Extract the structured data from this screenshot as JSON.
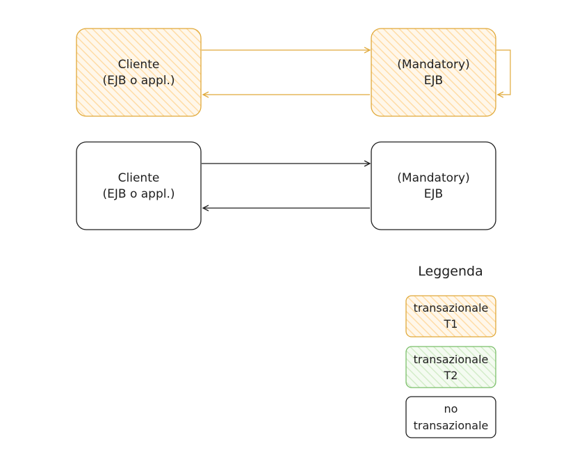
{
  "colors": {
    "t1_stroke": "#e0a93a",
    "t1_fill": "#ffeccc",
    "t2_stroke": "#7bbf6a",
    "t2_fill": "#e3f4dc",
    "none_stroke": "#1e1e1e",
    "none_fill": "#ffffff"
  },
  "diagram1": {
    "client": {
      "line1": "Cliente",
      "line2": "(EJB o appl.)"
    },
    "ejb": {
      "line1": "(Mandatory)",
      "line2": "EJB"
    }
  },
  "diagram2": {
    "client": {
      "line1": "Cliente",
      "line2": "(EJB o appl.)"
    },
    "ejb": {
      "line1": "(Mandatory)",
      "line2": "EJB"
    }
  },
  "legend": {
    "title": "Leggenda",
    "items": [
      {
        "line1": "transazionale",
        "line2": "T1"
      },
      {
        "line1": "transazionale",
        "line2": "T2"
      },
      {
        "line1": "no",
        "line2": "transazionale"
      }
    ]
  }
}
